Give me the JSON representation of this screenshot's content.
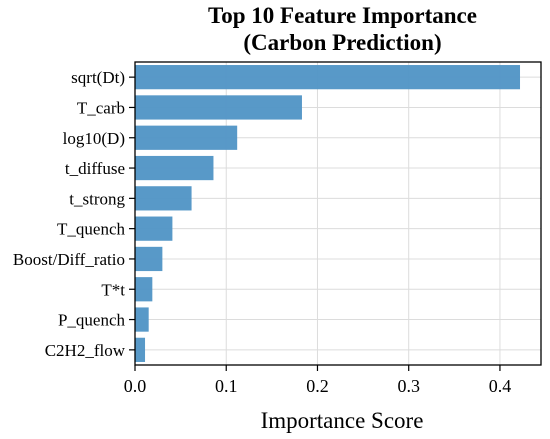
{
  "chart_data": {
    "type": "bar",
    "orientation": "horizontal",
    "title_lines": [
      "Top 10 Feature Importance",
      "(Carbon Prediction)"
    ],
    "xlabel": "Importance Score",
    "ylabel": "",
    "categories": [
      "sqrt(Dt)",
      "T_carb",
      "log10(D)",
      "t_diffuse",
      "t_strong",
      "T_quench",
      "Boost/Diff_ratio",
      "T*t",
      "P_quench",
      "C2H2_flow"
    ],
    "values": [
      0.422,
      0.183,
      0.112,
      0.086,
      0.062,
      0.041,
      0.03,
      0.019,
      0.015,
      0.011
    ],
    "xlim": [
      0,
      0.445
    ],
    "xticks": [
      0.0,
      0.1,
      0.2,
      0.3,
      0.4
    ],
    "xtick_labels": [
      "0.0",
      "0.1",
      "0.2",
      "0.3",
      "0.4"
    ],
    "grid": true,
    "bar_color": "#4f93c5"
  }
}
